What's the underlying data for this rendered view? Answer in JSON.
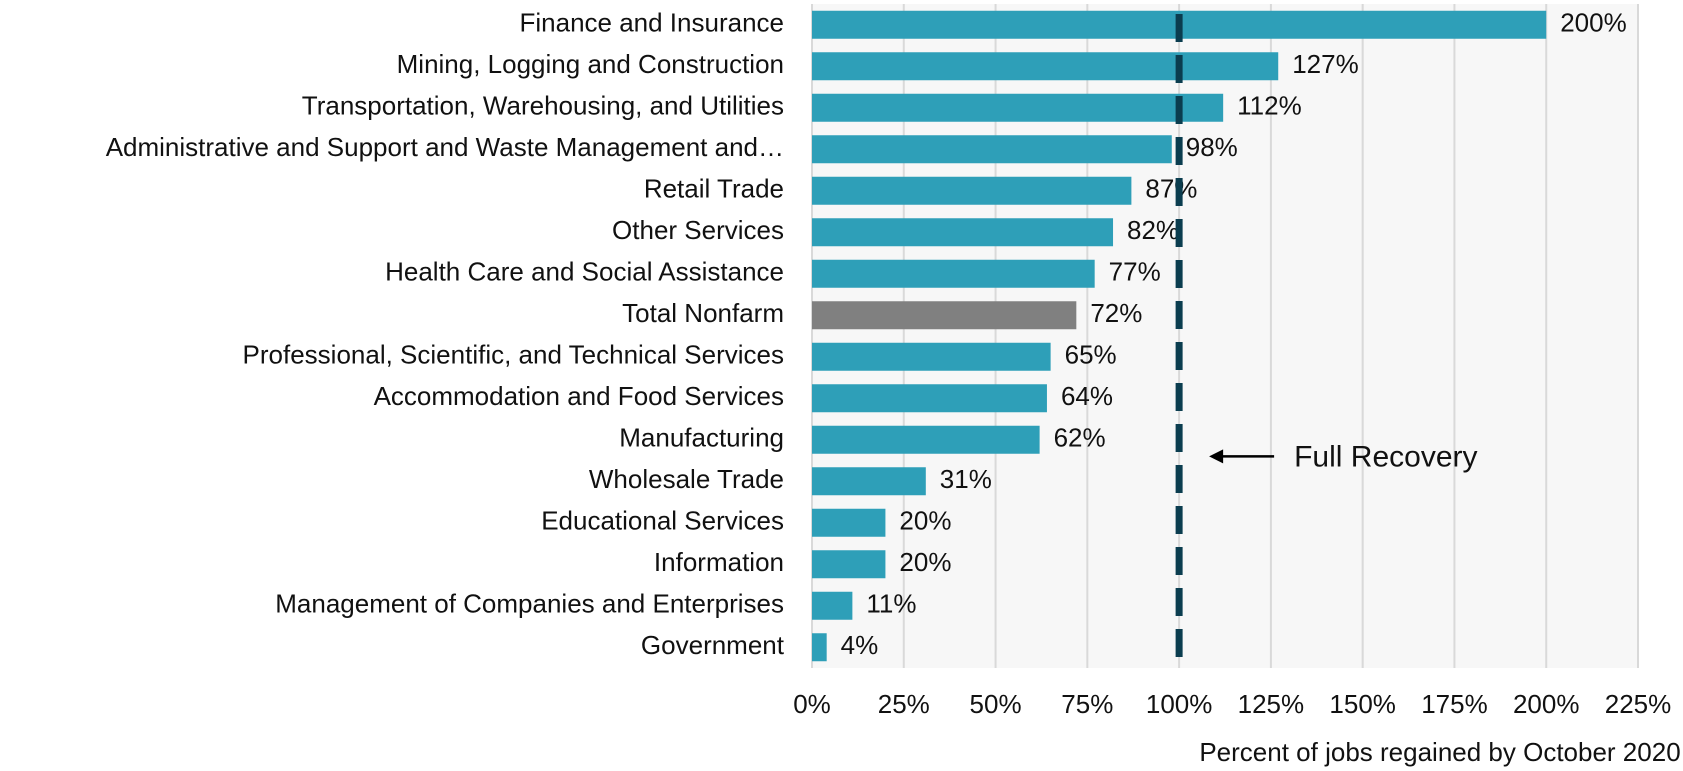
{
  "chart_data": {
    "type": "barh",
    "x_label": "Percent of jobs regained by October 2020",
    "categories": [
      "Finance and Insurance",
      "Mining, Logging and Construction",
      "Transportation, Warehousing, and Utilities",
      "Administrative and Support and Waste Management and…",
      "Retail Trade",
      "Other Services",
      "Health Care and Social Assistance",
      "Total Nonfarm",
      "Professional, Scientific, and Technical Services",
      "Accommodation and Food Services",
      "Manufacturing",
      "Wholesale Trade",
      "Educational Services",
      "Information",
      "Management of Companies and Enterprises",
      "Government"
    ],
    "values": [
      200,
      127,
      112,
      98,
      87,
      82,
      77,
      72,
      65,
      64,
      62,
      31,
      20,
      20,
      11,
      4
    ],
    "value_labels": [
      "200%",
      "127%",
      "112%",
      "98%",
      "87%",
      "82%",
      "77%",
      "72%",
      "65%",
      "64%",
      "62%",
      "31%",
      "20%",
      "20%",
      "11%",
      "4%"
    ],
    "colors": [
      "#2e9fb8",
      "#2e9fb8",
      "#2e9fb8",
      "#2e9fb8",
      "#2e9fb8",
      "#2e9fb8",
      "#2e9fb8",
      "#808080",
      "#2e9fb8",
      "#2e9fb8",
      "#2e9fb8",
      "#2e9fb8",
      "#2e9fb8",
      "#2e9fb8",
      "#2e9fb8",
      "#2e9fb8"
    ],
    "xlim": [
      0,
      225
    ],
    "xticks": [
      {
        "value": 0,
        "label": "0%"
      },
      {
        "value": 25,
        "label": "25%"
      },
      {
        "value": 50,
        "label": "50%"
      },
      {
        "value": 75,
        "label": "75%"
      },
      {
        "value": 100,
        "label": "100%"
      },
      {
        "value": 125,
        "label": "125%"
      },
      {
        "value": 150,
        "label": "150%"
      },
      {
        "value": 175,
        "label": "175%"
      },
      {
        "value": 200,
        "label": "200%"
      },
      {
        "value": 225,
        "label": "225%"
      }
    ],
    "grid": true,
    "reference_line": {
      "value": 100,
      "label": "Full Recovery",
      "color": "#0b3d4f"
    }
  }
}
